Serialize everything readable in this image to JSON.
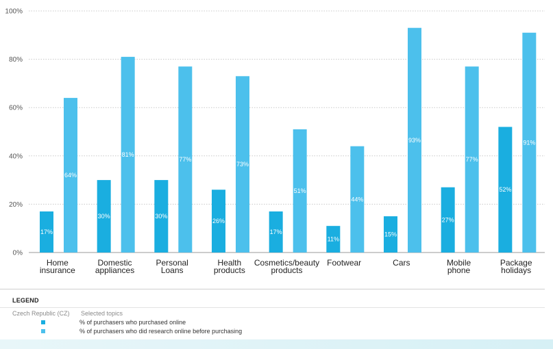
{
  "chart_data": {
    "type": "bar",
    "categories": [
      [
        "Home",
        "insurance"
      ],
      [
        "Domestic",
        "appliances"
      ],
      [
        "Personal",
        "Loans"
      ],
      [
        "Health",
        "products"
      ],
      [
        "Cosmetics/beauty",
        "products"
      ],
      [
        "Footwear"
      ],
      [
        "Cars"
      ],
      [
        "Mobile",
        "phone"
      ],
      [
        "Package",
        "holidays"
      ]
    ],
    "series": [
      {
        "name": "% of purchasers who purchased online",
        "color": "#1aaee0",
        "values": [
          17,
          30,
          30,
          26,
          17,
          11,
          15,
          27,
          52
        ]
      },
      {
        "name": "% of purchasers who did research online before purchasing",
        "color": "#4cc0ec",
        "values": [
          64,
          81,
          77,
          73,
          51,
          44,
          93,
          77,
          91
        ]
      }
    ],
    "yticks": [
      "0%",
      "20%",
      "40%",
      "60%",
      "80%",
      "100%"
    ],
    "ylim": [
      0,
      100
    ],
    "grid": true,
    "legend_position": "bottom"
  },
  "legend": {
    "title": "LEGEND",
    "country": "Czech Republic (CZ)",
    "topics": "Selected topics"
  }
}
